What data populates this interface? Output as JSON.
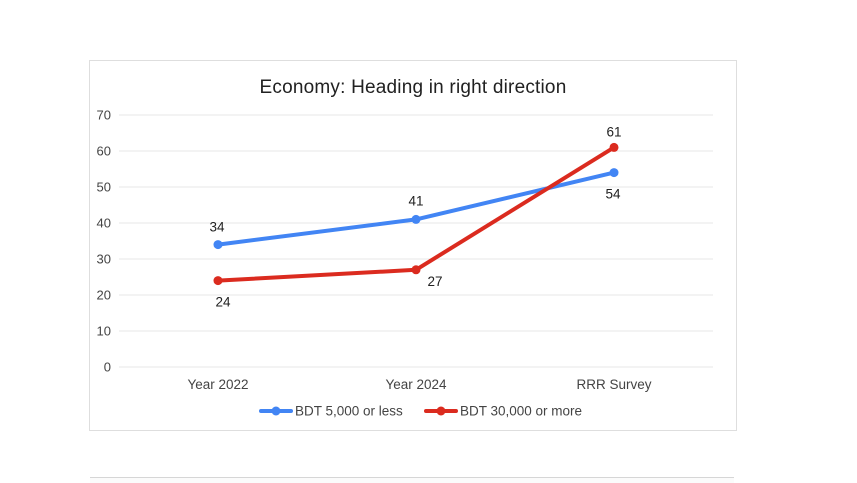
{
  "page": {
    "background": "#ffffff",
    "card_border_color": "#dedede"
  },
  "chart_data": {
    "type": "line",
    "title": "Economy: Heading in right direction",
    "categories": [
      "Year 2022",
      "Year 2024",
      "RRR Survey"
    ],
    "series": [
      {
        "name": "BDT 5,000 or less",
        "color": "#4285F4",
        "values": [
          34,
          41,
          54
        ],
        "label_offsets": [
          [
            -1,
            -13
          ],
          [
            0,
            -14
          ],
          [
            -1,
            26
          ]
        ]
      },
      {
        "name": "BDT 30,000 or more",
        "color": "#DB2B1F",
        "values": [
          24,
          27,
          61
        ],
        "label_offsets": [
          [
            5,
            26
          ],
          [
            19,
            16
          ],
          [
            0,
            -11
          ]
        ]
      }
    ],
    "xlabel": "",
    "ylabel": "",
    "ylim": [
      0,
      70
    ],
    "ytick_step": 10,
    "ytick_labels": [
      "0",
      "10",
      "20",
      "30",
      "40",
      "50",
      "60",
      "70"
    ],
    "grid": "horizontal-only",
    "grid_color": "#e7e7e7",
    "axis_text_color": "#444444",
    "data_label_color": "#212121",
    "title_color": "#212121",
    "legend_position": "bottom"
  }
}
